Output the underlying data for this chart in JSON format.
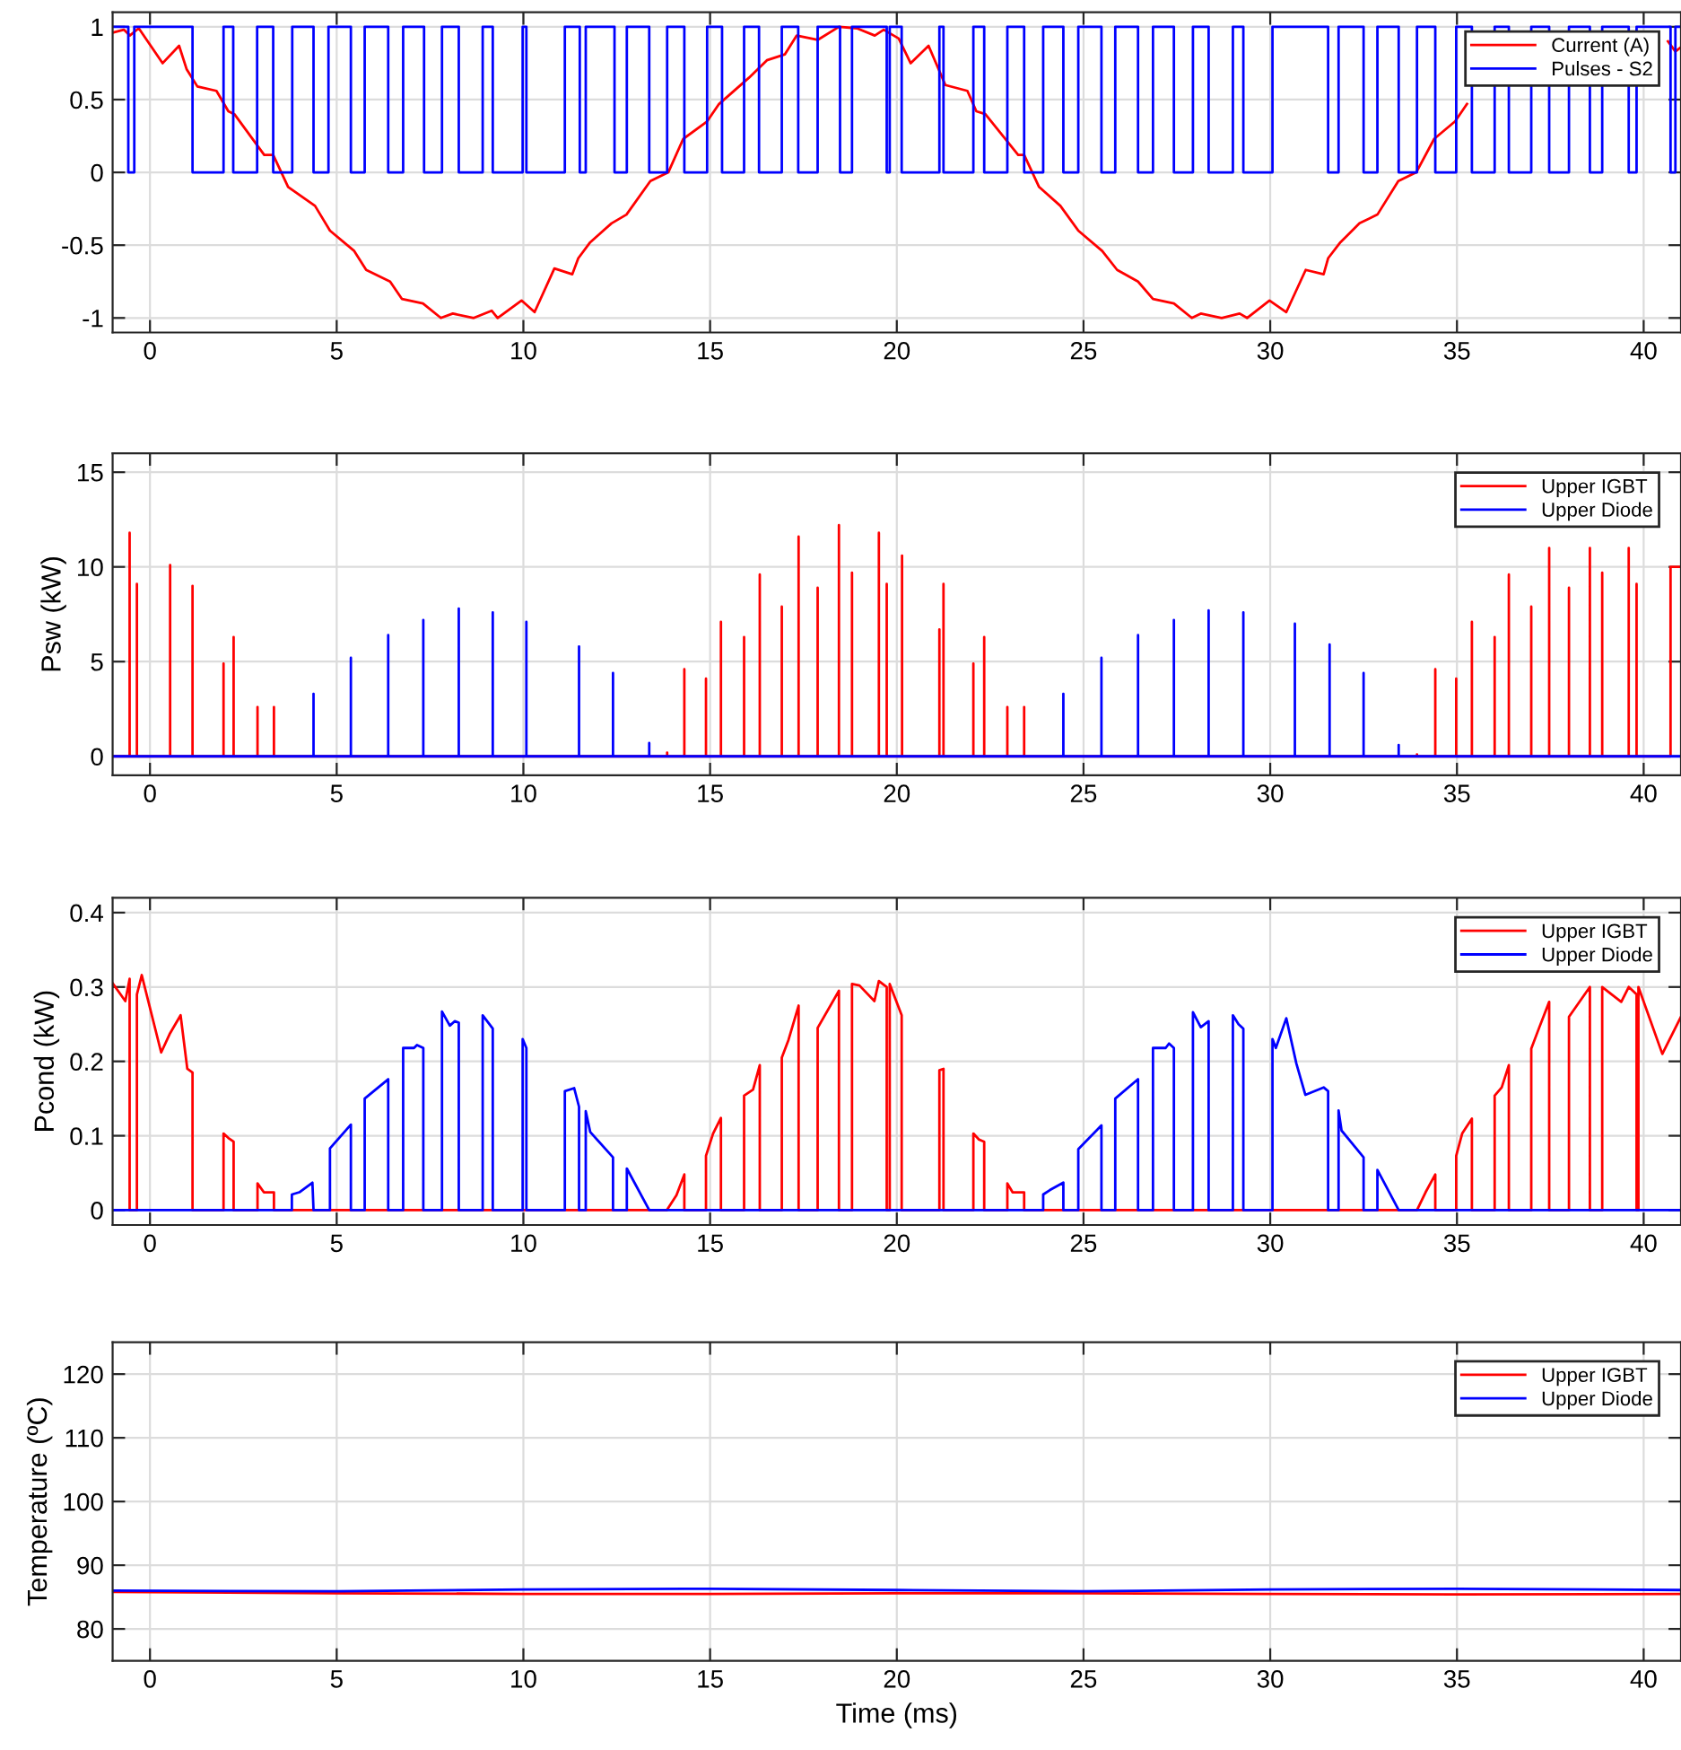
{
  "chart_data": [
    {
      "type": "line",
      "xlim": [
        -1,
        41
      ],
      "xticks": [
        0,
        5,
        10,
        15,
        20,
        25,
        30,
        35,
        40
      ],
      "ylim": [
        -1.1,
        1.1
      ],
      "yticks": [
        -1,
        -0.5,
        0,
        0.5,
        1
      ],
      "grid": true,
      "legend": "top right",
      "series": [
        {
          "name": "Current (A)",
          "color": "#ff0000",
          "x": [
            -1,
            -0.7,
            -0.54,
            -0.3,
            0.34,
            0.78,
            0.98,
            1.27,
            1.78,
            2.1,
            2.26,
            3.06,
            3.3,
            3.7,
            4.42,
            4.82,
            5.47,
            5.79,
            6.43,
            6.75,
            7.31,
            7.79,
            8.11,
            8.67,
            9.15,
            9.31,
            9.95,
            10.3,
            10.83,
            11.31,
            11.47,
            11.79,
            12.36,
            12.76,
            13.4,
            13.88,
            14.28,
            14.92,
            15.24,
            16.04,
            16.28,
            16.52,
            17.0,
            17.32,
            17.88,
            18.45,
            18.93,
            19.41,
            19.65,
            20.05,
            20.37,
            20.85,
            21.3,
            21.89,
            22.13,
            22.37,
            23.25,
            23.41,
            23.81,
            24.38,
            24.86,
            25.5,
            25.9,
            26.46,
            26.86,
            27.42,
            27.9,
            28.14,
            28.7,
            29.18,
            29.38,
            29.98,
            30.43,
            30.95,
            31.43,
            31.55,
            31.88,
            32.39,
            32.87,
            33.43,
            33.91,
            34.39,
            34.95,
            35.27,
            35.6,
            40.65,
            40.85,
            41
          ],
          "values": [
            0.96,
            0.98,
            0.94,
            0.99,
            0.75,
            0.87,
            0.71,
            0.59,
            0.56,
            0.42,
            0.4,
            0.12,
            0.12,
            -0.1,
            -0.23,
            -0.4,
            -0.54,
            -0.67,
            -0.75,
            -0.87,
            -0.9,
            -1.0,
            -0.97,
            -1.0,
            -0.95,
            -1.0,
            -0.88,
            -0.96,
            -0.66,
            -0.7,
            -0.59,
            -0.48,
            -0.35,
            -0.29,
            -0.06,
            0.0,
            0.23,
            0.35,
            0.47,
            0.65,
            0.71,
            0.77,
            0.81,
            0.94,
            0.91,
            1.0,
            0.99,
            0.94,
            0.98,
            0.92,
            0.75,
            0.87,
            0.6,
            0.56,
            0.42,
            0.4,
            0.12,
            0.12,
            -0.1,
            -0.23,
            -0.4,
            -0.54,
            -0.67,
            -0.75,
            -0.87,
            -0.9,
            -1.0,
            -0.97,
            -1.0,
            -0.97,
            -1.0,
            -0.88,
            -0.96,
            -0.67,
            -0.7,
            -0.59,
            -0.48,
            -0.35,
            -0.29,
            -0.06,
            0.0,
            0.23,
            0.35,
            0.47,
            null,
            0.9,
            0.83,
            0.86
          ]
        },
        {
          "name": "Pulses - S2",
          "color": "#0000ff",
          "type": "step",
          "x": [
            -1,
            -0.58,
            -0.42,
            1.14,
            1.97,
            2.23,
            2.87,
            3.3,
            3.81,
            4.38,
            4.78,
            5.38,
            5.75,
            6.38,
            6.78,
            7.34,
            7.82,
            8.27,
            8.91,
            9.18,
            9.98,
            10.08,
            11.11,
            11.51,
            11.67,
            12.44,
            12.77,
            13.37,
            13.85,
            14.31,
            14.92,
            15.32,
            15.91,
            16.31,
            16.92,
            17.36,
            17.88,
            18.48,
            18.8,
            19.73,
            19.81,
            20.13,
            21.14,
            21.25,
            22.05,
            22.34,
            22.96,
            23.41,
            23.92,
            24.46,
            24.86,
            25.48,
            25.85,
            26.46,
            26.86,
            27.42,
            27.93,
            28.35,
            29.0,
            29.28,
            30.06,
            31.55,
            31.83,
            32.5,
            32.87,
            33.44,
            33.93,
            34.42,
            34.98,
            35.4,
            36.01,
            36.39,
            36.99,
            37.47,
            38.0,
            38.56,
            38.89,
            39.6,
            39.81,
            40.72,
            40.85,
            41
          ],
          "values": [
            1,
            0,
            1,
            0,
            1,
            0,
            1,
            0,
            1,
            0,
            1,
            0,
            1,
            0,
            1,
            0,
            1,
            0,
            1,
            0,
            1,
            0,
            1,
            0,
            1,
            0,
            1,
            0,
            1,
            0,
            1,
            0,
            1,
            0,
            1,
            0,
            1,
            0,
            1,
            0,
            1,
            0,
            1,
            0,
            1,
            0,
            1,
            0,
            1,
            0,
            1,
            0,
            1,
            0,
            1,
            0,
            1,
            0,
            1,
            0,
            1,
            0,
            1,
            0,
            1,
            0,
            1,
            0,
            1,
            0,
            1,
            0,
            1,
            0,
            1,
            0,
            1,
            0,
            1,
            0,
            1,
            1
          ]
        }
      ]
    },
    {
      "type": "line",
      "ylabel": "Psw (kW)",
      "xlim": [
        -1,
        41
      ],
      "xticks": [
        0,
        5,
        10,
        15,
        20,
        25,
        30,
        35,
        40
      ],
      "ylim": [
        -1,
        16
      ],
      "yticks": [
        0,
        5,
        10,
        15
      ],
      "grid": true,
      "legend": "top right",
      "series": [
        {
          "name": "Upper IGBT",
          "color": "#ff0000",
          "x": [
            -1,
            -0.545,
            -0.545,
            -0.545,
            -0.35,
            -0.35,
            -0.35,
            0.54,
            0.54,
            0.54,
            1.14,
            1.14,
            1.14,
            1.97,
            1.97,
            1.97,
            2.24,
            2.24,
            2.24,
            2.88,
            2.88,
            2.88,
            3.32,
            3.32,
            3.32,
            13.85,
            13.85,
            13.85,
            14.31,
            14.31,
            14.31,
            14.89,
            14.89,
            14.89,
            15.29,
            15.29,
            15.29,
            15.91,
            15.91,
            15.91,
            16.33,
            16.33,
            16.33,
            16.92,
            16.92,
            16.92,
            17.37,
            17.37,
            17.37,
            17.88,
            17.88,
            17.88,
            18.45,
            18.45,
            18.45,
            18.8,
            18.8,
            18.8,
            19.52,
            19.52,
            19.52,
            19.73,
            19.73,
            19.73,
            20.14,
            20.14,
            20.14,
            21.14,
            21.14,
            21.14,
            21.25,
            21.25,
            21.25,
            22.05,
            22.05,
            22.05,
            22.34,
            22.34,
            22.34,
            22.96,
            22.96,
            22.96,
            23.41,
            23.41,
            23.41,
            33.93,
            33.93,
            33.93,
            34.42,
            34.42,
            34.42,
            34.98,
            34.98,
            34.98,
            35.4,
            35.4,
            35.4,
            36.01,
            36.01,
            36.01,
            36.39,
            36.39,
            36.39,
            36.99,
            36.99,
            36.99,
            37.47,
            37.47,
            37.47,
            38.0,
            38.0,
            38.0,
            38.56,
            38.56,
            38.56,
            38.89,
            38.89,
            38.89,
            39.6,
            39.6,
            39.6,
            39.81,
            39.81,
            39.81,
            40.72,
            40.72,
            41
          ],
          "values": [
            0,
            0,
            11.8,
            0,
            0,
            9.1,
            0,
            0,
            10.1,
            0,
            0,
            9.0,
            0,
            0,
            4.9,
            0,
            0,
            6.3,
            0,
            0,
            2.6,
            0,
            0,
            2.6,
            0,
            0,
            0.2,
            0,
            0,
            4.6,
            0,
            0,
            4.1,
            0,
            0,
            7.1,
            0,
            0,
            6.3,
            0,
            0,
            9.6,
            0,
            0,
            7.9,
            0,
            0,
            11.6,
            0,
            0,
            8.9,
            0,
            0,
            12.2,
            0,
            0,
            9.7,
            0,
            0,
            11.8,
            0,
            0,
            9.1,
            0,
            0,
            10.6,
            0,
            0,
            6.7,
            0,
            0,
            9.1,
            0,
            0,
            4.9,
            0,
            0,
            6.3,
            0,
            0,
            2.6,
            0,
            0,
            2.6,
            0,
            0,
            0.1,
            0,
            0,
            4.6,
            0,
            0,
            4.1,
            0,
            0,
            7.1,
            0,
            0,
            6.3,
            0,
            0,
            9.6,
            0,
            0,
            7.9,
            0,
            0,
            11,
            0,
            0,
            8.9,
            0,
            0,
            11,
            0,
            0,
            9.7,
            0,
            0,
            11,
            0,
            0,
            9.1,
            0,
            0,
            10,
            10
          ]
        },
        {
          "name": "Upper Diode",
          "color": "#0000ff",
          "x": [
            -1,
            4.38,
            4.38,
            4.38,
            5.38,
            5.38,
            5.38,
            6.38,
            6.38,
            6.38,
            7.32,
            7.32,
            7.32,
            8.27,
            8.27,
            8.27,
            9.18,
            9.18,
            9.18,
            10.08,
            10.08,
            10.08,
            11.49,
            11.49,
            11.49,
            12.4,
            12.4,
            12.4,
            13.37,
            13.37,
            13.37,
            24.46,
            24.46,
            24.46,
            25.48,
            25.48,
            25.48,
            26.46,
            26.46,
            26.46,
            27.42,
            27.42,
            27.42,
            28.35,
            28.35,
            28.35,
            29.28,
            29.28,
            29.28,
            30.66,
            30.66,
            30.66,
            31.59,
            31.59,
            31.59,
            32.5,
            32.5,
            32.5,
            33.44,
            33.44,
            33.44,
            41
          ],
          "values": [
            0,
            0,
            3.3,
            0,
            0,
            5.2,
            0,
            0,
            6.4,
            0,
            0,
            7.2,
            0,
            0,
            7.8,
            0,
            0,
            7.6,
            0,
            0,
            7.1,
            0,
            0,
            5.8,
            0,
            0,
            4.4,
            0,
            0,
            0.7,
            0,
            0,
            3.3,
            0,
            0,
            5.2,
            0,
            0,
            6.4,
            0,
            0,
            7.2,
            0,
            0,
            7.7,
            0,
            0,
            7.6,
            0,
            0,
            7.0,
            0,
            0,
            5.9,
            0,
            0,
            4.4,
            0,
            0,
            0.6,
            0,
            0
          ]
        }
      ]
    },
    {
      "type": "line",
      "ylabel": "Pcond (kW)",
      "xlim": [
        -1,
        41
      ],
      "xticks": [
        0,
        5,
        10,
        15,
        20,
        25,
        30,
        35,
        40
      ],
      "ylim": [
        -0.02,
        0.42
      ],
      "yticks": [
        0,
        0.1,
        0.2,
        0.3,
        0.4
      ],
      "grid": true,
      "legend": "top right",
      "series": [
        {
          "name": "Upper IGBT",
          "color": "#ff0000",
          "x": [
            -1,
            -0.66,
            -0.545,
            -0.545,
            -0.35,
            -0.35,
            -0.22,
            0.3,
            0.54,
            0.82,
            1.0,
            1.14,
            1.14,
            1.97,
            1.97,
            2.1,
            2.24,
            2.24,
            2.88,
            2.88,
            3.05,
            3.32,
            3.32,
            13.84,
            14.1,
            14.31,
            14.31,
            14.89,
            14.89,
            15.08,
            15.29,
            15.29,
            15.91,
            15.91,
            16.15,
            16.33,
            16.33,
            16.92,
            16.92,
            17.1,
            17.37,
            17.37,
            17.88,
            17.88,
            18.45,
            18.45,
            18.8,
            18.8,
            19.0,
            19.4,
            19.52,
            19.73,
            19.73,
            19.81,
            19.81,
            20.13,
            20.13,
            21.14,
            21.14,
            21.25,
            21.25,
            22.05,
            22.05,
            22.2,
            22.34,
            22.34,
            22.96,
            22.96,
            23.1,
            23.41,
            23.41,
            33.93,
            34.16,
            34.42,
            34.42,
            34.98,
            34.98,
            35.14,
            35.4,
            35.4,
            36.01,
            36.01,
            36.2,
            36.39,
            36.39,
            36.99,
            36.99,
            37.2,
            37.47,
            37.47,
            38.0,
            38.0,
            38.56,
            38.56,
            38.89,
            38.89,
            39.4,
            39.6,
            39.81,
            39.81,
            39.86,
            39.86,
            40.5,
            41
          ],
          "values": [
            0.305,
            0.281,
            0.311,
            0,
            0,
            0.29,
            0.316,
            0.212,
            0.238,
            0.262,
            0.19,
            0.185,
            0,
            0,
            0.103,
            0.097,
            0.092,
            0,
            0,
            0.036,
            0.024,
            0.024,
            0,
            0,
            0.02,
            0.048,
            0,
            0,
            0.073,
            0.103,
            0.124,
            0,
            0,
            0.154,
            0.162,
            0.195,
            0,
            0,
            0.205,
            0.229,
            0.275,
            0,
            0,
            0.245,
            0.295,
            0,
            0,
            0.304,
            0.302,
            0.281,
            0.308,
            0.3,
            0,
            0,
            0.304,
            0.262,
            0,
            0,
            0.188,
            0.19,
            0,
            0,
            0.103,
            0.095,
            0.092,
            0,
            0,
            0.036,
            0.024,
            0.024,
            0,
            0,
            0.024,
            0.048,
            0,
            0,
            0.073,
            0.103,
            0.123,
            0,
            0,
            0.154,
            0.165,
            0.195,
            0,
            0,
            0.217,
            0.245,
            0.28,
            0,
            0,
            0.26,
            0.3,
            0,
            0,
            0.3,
            0.28,
            0.3,
            0.29,
            0,
            0,
            0.3,
            0.21,
            0.26
          ]
        },
        {
          "name": "Upper Diode",
          "color": "#0000ff",
          "x": [
            -1,
            3.8,
            3.8,
            4.0,
            4.35,
            4.38,
            4.82,
            4.82,
            5.38,
            5.38,
            5.75,
            5.75,
            6.38,
            6.38,
            6.78,
            6.78,
            7.07,
            7.15,
            7.32,
            7.32,
            7.82,
            7.82,
            8.03,
            8.16,
            8.27,
            8.27,
            8.91,
            8.91,
            9.18,
            9.18,
            9.98,
            9.98,
            10.08,
            10.08,
            11.11,
            11.11,
            11.36,
            11.49,
            11.49,
            11.67,
            11.67,
            11.79,
            12.4,
            12.4,
            12.77,
            12.77,
            13.37,
            23.92,
            23.92,
            24.1,
            24.46,
            24.46,
            24.86,
            24.86,
            25.48,
            25.48,
            25.85,
            25.85,
            26.46,
            26.46,
            26.86,
            26.86,
            27.2,
            27.29,
            27.42,
            27.42,
            27.93,
            27.93,
            28.14,
            28.35,
            28.35,
            29.0,
            29.0,
            29.15,
            29.28,
            29.28,
            30.06,
            30.06,
            30.15,
            30.43,
            30.7,
            30.94,
            31.43,
            31.55,
            31.55,
            31.83,
            31.83,
            31.91,
            32.5,
            32.5,
            32.87,
            32.87,
            33.44,
            41
          ],
          "values": [
            0,
            0,
            0.021,
            0.024,
            0.037,
            0,
            0,
            0.083,
            0.115,
            0,
            0,
            0.15,
            0.176,
            0,
            0,
            0.218,
            0.218,
            0.222,
            0.218,
            0,
            0,
            0.267,
            0.248,
            0.254,
            0.252,
            0,
            0,
            0.262,
            0.244,
            0,
            0,
            0.23,
            0.218,
            0,
            0,
            0.16,
            0.164,
            0.139,
            0,
            0,
            0.133,
            0.105,
            0.071,
            0,
            0,
            0.056,
            0,
            0,
            0.021,
            0.027,
            0.037,
            0,
            0,
            0.082,
            0.114,
            0,
            0,
            0.15,
            0.176,
            0,
            0,
            0.218,
            0.218,
            0.224,
            0.218,
            0,
            0,
            0.266,
            0.246,
            0.254,
            0,
            0,
            0.262,
            0.25,
            0.244,
            0,
            0,
            0.23,
            0.218,
            0.258,
            0.197,
            0.155,
            0.165,
            0.16,
            0,
            0,
            0.134,
            0.107,
            0.071,
            0,
            0,
            0.054,
            0,
            0
          ]
        }
      ]
    },
    {
      "type": "line",
      "xlabel": "Time (ms)",
      "ylabel": "Temperature (ºC)",
      "xlim": [
        -1,
        41
      ],
      "xticks": [
        0,
        5,
        10,
        15,
        20,
        25,
        30,
        35,
        40
      ],
      "ylim": [
        75,
        125
      ],
      "yticks": [
        80,
        90,
        100,
        110,
        120
      ],
      "grid": true,
      "legend": "top right",
      "series": [
        {
          "name": "Upper IGBT",
          "color": "#ff0000",
          "x": [
            -1,
            5,
            10,
            15,
            20,
            25,
            30,
            35,
            41
          ],
          "values": [
            85.8,
            85.6,
            85.5,
            85.5,
            85.6,
            85.6,
            85.5,
            85.4,
            85.5
          ]
        },
        {
          "name": "Upper Diode",
          "color": "#0000ff",
          "x": [
            -1,
            5,
            10,
            15,
            20,
            25,
            30,
            35,
            41
          ],
          "values": [
            86.0,
            85.9,
            86.2,
            86.3,
            86.1,
            85.9,
            86.2,
            86.3,
            86.1
          ]
        }
      ]
    }
  ]
}
